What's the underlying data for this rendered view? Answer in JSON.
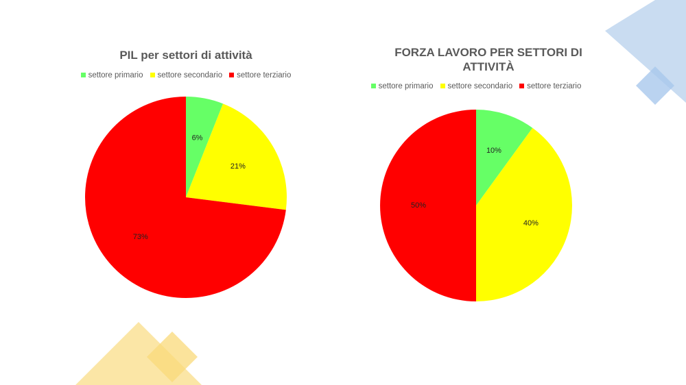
{
  "chart_data": [
    {
      "type": "pie",
      "title": "PIL per settori di attività",
      "categories": [
        "settore primario",
        "settore secondario",
        "settore terziario"
      ],
      "values": [
        6,
        21,
        73
      ],
      "value_labels": [
        "6%",
        "21%",
        "73%"
      ],
      "colors": [
        "#66ff66",
        "#ffff00",
        "#ff0000"
      ]
    },
    {
      "type": "pie",
      "title": "FORZA LAVORO PER SETTORI DI ATTIVITÀ",
      "categories": [
        "settore primario",
        "settore secondario",
        "settore terziario"
      ],
      "values": [
        10,
        40,
        50
      ],
      "value_labels": [
        "10%",
        "40%",
        "50%"
      ],
      "colors": [
        "#66ff66",
        "#ffff00",
        "#ff0000"
      ]
    }
  ]
}
